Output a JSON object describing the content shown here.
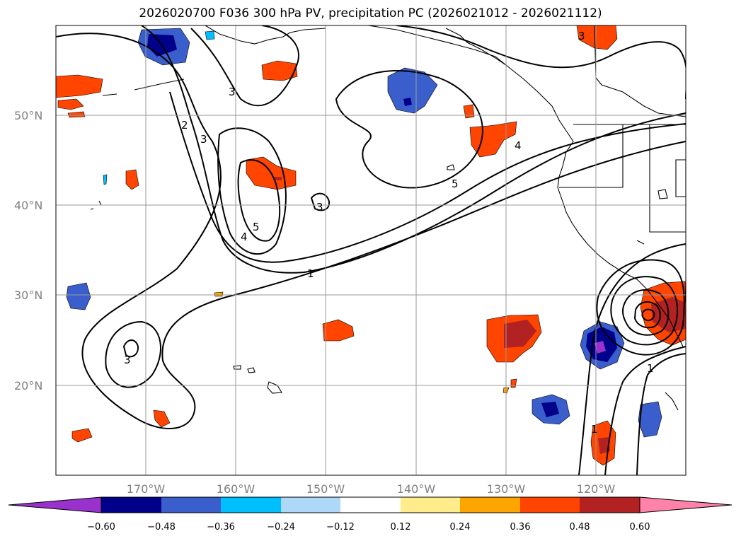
{
  "title": "2026020700 F036 300 hPa PV, precipitation PC (2026021012 - 2026021112)",
  "map": {
    "lon_range": [
      -180,
      -110
    ],
    "lat_range": [
      10,
      60
    ],
    "lat_ticks": [
      "50°N",
      "40°N",
      "30°N",
      "20°N"
    ],
    "lat_values": [
      50,
      40,
      30,
      20
    ],
    "lon_ticks": [
      "170°W",
      "160°W",
      "150°W",
      "140°W",
      "130°W",
      "120°W"
    ],
    "lon_values": [
      -170,
      -160,
      -150,
      -140,
      -130,
      -120
    ],
    "gridlines": true,
    "contour_labels": [
      "3",
      "2",
      "3",
      "5",
      "4",
      "3",
      "1",
      "5",
      "4",
      "3",
      "1",
      "1",
      "3"
    ]
  },
  "colorbar": {
    "ticks": [
      "−0.60",
      "−0.48",
      "−0.36",
      "−0.24",
      "−0.12",
      "0.12",
      "0.24",
      "0.36",
      "0.48",
      "0.60"
    ],
    "colors": [
      "#9932cc",
      "#00008b",
      "#3a5fcd",
      "#00bfff",
      "#add8f7",
      "#ffffff",
      "#ffec8b",
      "#ffa500",
      "#ff4500",
      "#b22222",
      "#ff82ab"
    ],
    "extend": "both"
  }
}
